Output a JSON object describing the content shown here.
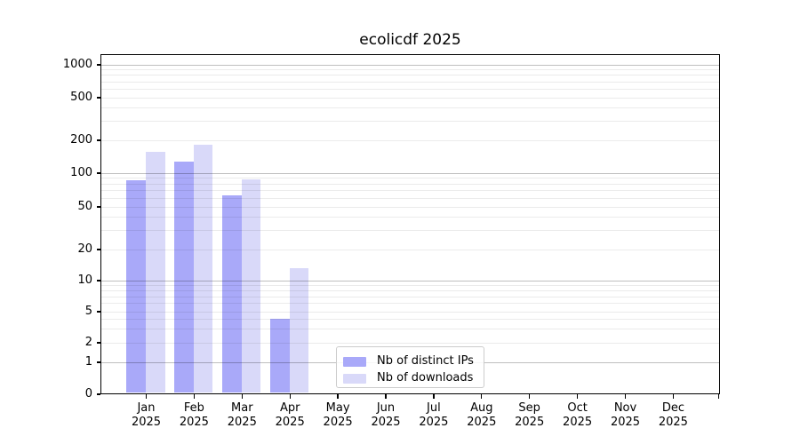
{
  "title": "ecolicdf 2025",
  "chart_data": {
    "type": "bar",
    "title": "ecolicdf 2025",
    "categories": [
      "Jan 2025",
      "Feb 2025",
      "Mar 2025",
      "Apr 2025",
      "May 2025",
      "Jun 2025",
      "Jul 2025",
      "Aug 2025",
      "Sep 2025",
      "Oct 2025",
      "Nov 2025",
      "Dec 2025"
    ],
    "series": [
      {
        "name": "Nb of distinct IPs",
        "color": "#a9a9f9",
        "values": [
          85,
          127,
          63,
          4,
          0,
          0,
          0,
          0,
          0,
          0,
          0,
          0
        ]
      },
      {
        "name": "Nb of downloads",
        "color": "#d9d9f9",
        "values": [
          155,
          180,
          87,
          13,
          0,
          0,
          0,
          0,
          0,
          0,
          0,
          0
        ]
      }
    ],
    "xlabel": "",
    "ylabel": "",
    "yscale": "symlog",
    "ytick_labels": [
      "0",
      "1",
      "2",
      "5",
      "10",
      "20",
      "50",
      "100",
      "200",
      "500",
      "1000"
    ],
    "yticks": [
      0,
      1,
      2,
      5,
      10,
      20,
      50,
      100,
      200,
      500,
      1000
    ],
    "ylim": [
      0,
      1400
    ],
    "grid": true,
    "legend_position": "lower center"
  },
  "colors": {
    "bar_distinct_ips": "#a9a9f9",
    "bar_downloads": "#d9d9f9",
    "grid_major": "#c0c0c0",
    "grid_minor": "#ebebeb",
    "axis_line": "#000000",
    "legend_border": "#cccccc",
    "background": "#ffffff"
  }
}
